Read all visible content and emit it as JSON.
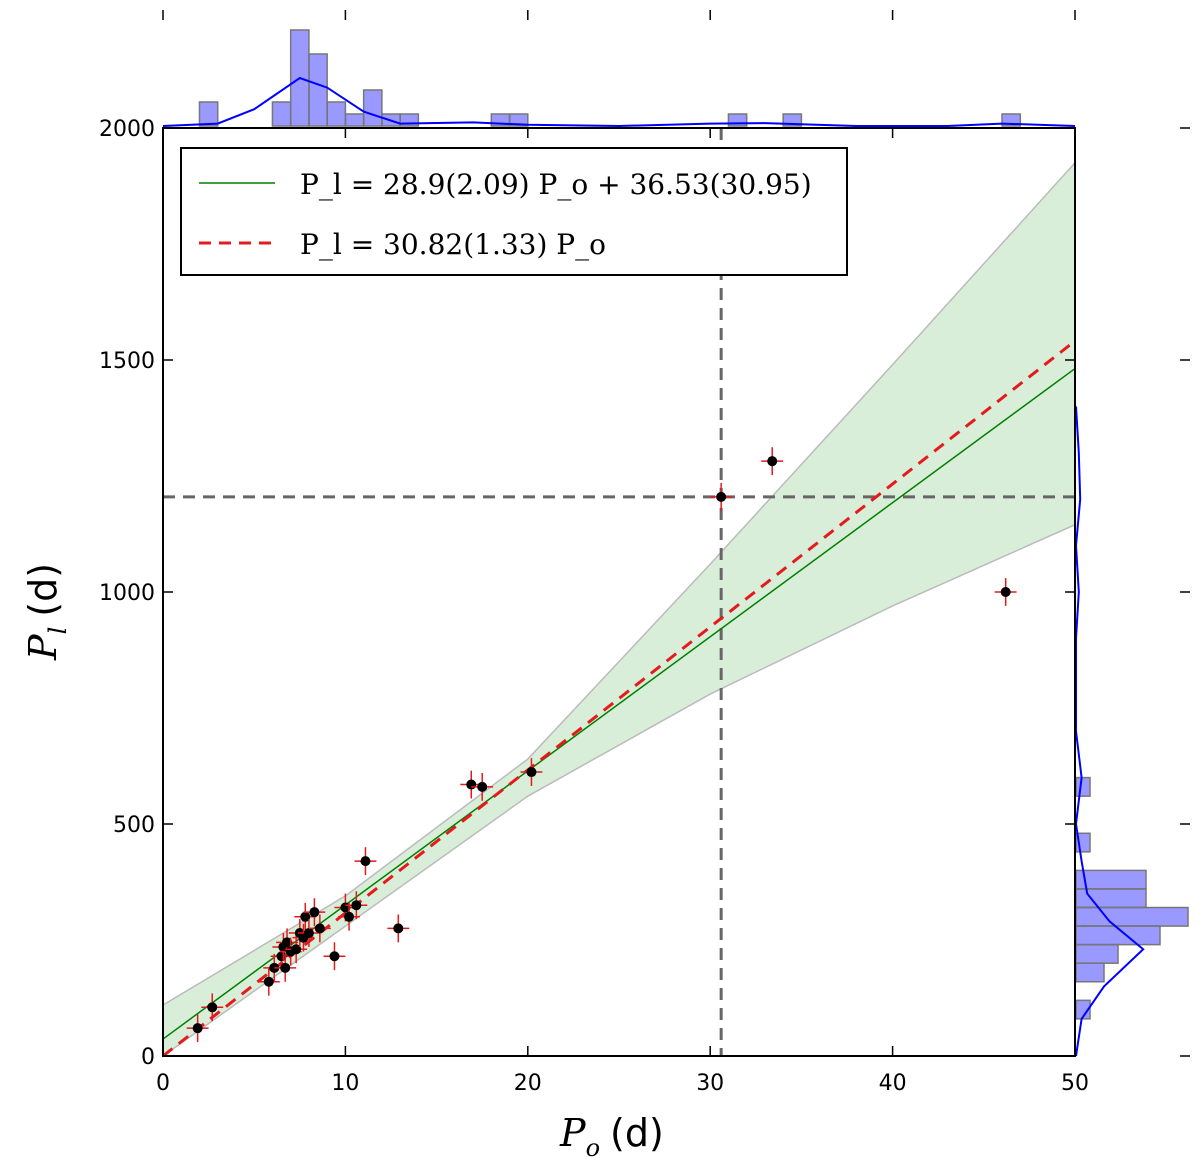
{
  "chart_data": {
    "type": "scatter",
    "title": "",
    "xlabel": {
      "symbol": "P",
      "subscript": "o",
      "unit": "(d)"
    },
    "ylabel": {
      "symbol": "P",
      "subscript": "l",
      "unit": "(d)"
    },
    "xlim": [
      0,
      50
    ],
    "ylim": [
      0,
      2000
    ],
    "x_ticks": [
      "0",
      "10",
      "20",
      "30",
      "40",
      "50"
    ],
    "y_ticks": [
      "0",
      "500",
      "1000",
      "1500",
      "2000"
    ],
    "x_tick_values": [
      0,
      10,
      20,
      30,
      40,
      50
    ],
    "y_tick_values": [
      0,
      500,
      1000,
      1500,
      2000
    ],
    "grid": false,
    "legend_position": "top-left",
    "points": [
      {
        "x": 1.9,
        "y": 60,
        "xerr": 0.6,
        "yerr": 30
      },
      {
        "x": 2.7,
        "y": 105,
        "xerr": 0.6,
        "yerr": 30
      },
      {
        "x": 5.8,
        "y": 160,
        "xerr": 0.6,
        "yerr": 30
      },
      {
        "x": 6.1,
        "y": 190,
        "xerr": 0.6,
        "yerr": 30
      },
      {
        "x": 6.5,
        "y": 215,
        "xerr": 0.6,
        "yerr": 30
      },
      {
        "x": 6.6,
        "y": 235,
        "xerr": 0.6,
        "yerr": 30
      },
      {
        "x": 6.7,
        "y": 190,
        "xerr": 0.6,
        "yerr": 30
      },
      {
        "x": 6.8,
        "y": 245,
        "xerr": 0.6,
        "yerr": 30
      },
      {
        "x": 7.0,
        "y": 225,
        "xerr": 0.6,
        "yerr": 30
      },
      {
        "x": 7.3,
        "y": 230,
        "xerr": 0.6,
        "yerr": 30
      },
      {
        "x": 7.5,
        "y": 265,
        "xerr": 0.6,
        "yerr": 30
      },
      {
        "x": 7.7,
        "y": 255,
        "xerr": 0.6,
        "yerr": 30
      },
      {
        "x": 7.8,
        "y": 300,
        "xerr": 0.6,
        "yerr": 30
      },
      {
        "x": 8.0,
        "y": 265,
        "xerr": 0.6,
        "yerr": 30
      },
      {
        "x": 8.3,
        "y": 310,
        "xerr": 0.6,
        "yerr": 30
      },
      {
        "x": 8.6,
        "y": 275,
        "xerr": 0.6,
        "yerr": 30
      },
      {
        "x": 9.4,
        "y": 215,
        "xerr": 0.6,
        "yerr": 30
      },
      {
        "x": 10.0,
        "y": 320,
        "xerr": 0.6,
        "yerr": 30
      },
      {
        "x": 10.2,
        "y": 300,
        "xerr": 0.6,
        "yerr": 30
      },
      {
        "x": 10.6,
        "y": 325,
        "xerr": 0.6,
        "yerr": 30
      },
      {
        "x": 11.1,
        "y": 420,
        "xerr": 0.6,
        "yerr": 30
      },
      {
        "x": 12.9,
        "y": 275,
        "xerr": 0.6,
        "yerr": 30
      },
      {
        "x": 16.9,
        "y": 585,
        "xerr": 0.6,
        "yerr": 30
      },
      {
        "x": 17.5,
        "y": 580,
        "xerr": 0.6,
        "yerr": 30
      },
      {
        "x": 20.2,
        "y": 612,
        "xerr": 0.6,
        "yerr": 30
      },
      {
        "x": 30.6,
        "y": 1205,
        "xerr": 0.6,
        "yerr": 30
      },
      {
        "x": 33.4,
        "y": 1282,
        "xerr": 0.6,
        "yerr": 30
      },
      {
        "x": 46.2,
        "y": 1000,
        "xerr": 0.6,
        "yerr": 30
      }
    ],
    "fit_line": {
      "label": "P_l = 28.9(2.09) P_o + 36.53(30.95)",
      "slope": 28.9,
      "intercept": 36.53,
      "color": "#008000"
    },
    "fit_line_origin": {
      "label": "P_l = 30.82(1.33) P_o",
      "slope": 30.82,
      "intercept": 0,
      "color": "#e41a1c"
    },
    "confidence_band": {
      "color": "#2ca02c",
      "upper": [
        {
          "x": 0,
          "y": 110
        },
        {
          "x": 10,
          "y": 345
        },
        {
          "x": 20,
          "y": 640
        },
        {
          "x": 30,
          "y": 1060
        },
        {
          "x": 40,
          "y": 1490
        },
        {
          "x": 50,
          "y": 1925
        }
      ],
      "lower": [
        {
          "x": 0,
          "y": -20
        },
        {
          "x": 10,
          "y": 280
        },
        {
          "x": 20,
          "y": 560
        },
        {
          "x": 30,
          "y": 780
        },
        {
          "x": 40,
          "y": 970
        },
        {
          "x": 50,
          "y": 1145
        }
      ]
    },
    "reference_lines": {
      "x": 30.6,
      "y": 1205,
      "color": "#666666"
    },
    "top_histogram": {
      "bin_edges_start": 0,
      "bin_width": 1.0,
      "counts": [
        0,
        0,
        1,
        0,
        0,
        0,
        1,
        4,
        3,
        1,
        0.5,
        1.5,
        0.5,
        0.5,
        0,
        0,
        0,
        0,
        0.5,
        0.5,
        0,
        0,
        0,
        0,
        0,
        0,
        0,
        0,
        0,
        0,
        0,
        0.5,
        0,
        0,
        0.5,
        0,
        0,
        0,
        0,
        0,
        0,
        0,
        0,
        0,
        0,
        0,
        0.5,
        0,
        0,
        0
      ],
      "kde": [
        {
          "x": 0,
          "y": 0.0
        },
        {
          "x": 3,
          "y": 0.1
        },
        {
          "x": 5,
          "y": 0.7
        },
        {
          "x": 7.5,
          "y": 2.0
        },
        {
          "x": 9,
          "y": 1.6
        },
        {
          "x": 11,
          "y": 0.6
        },
        {
          "x": 13,
          "y": 0.1
        },
        {
          "x": 17,
          "y": 0.15
        },
        {
          "x": 20,
          "y": 0.05
        },
        {
          "x": 25,
          "y": 0.0
        },
        {
          "x": 30,
          "y": 0.1
        },
        {
          "x": 33,
          "y": 0.12
        },
        {
          "x": 38,
          "y": 0.0
        },
        {
          "x": 43,
          "y": 0.0
        },
        {
          "x": 46,
          "y": 0.1
        },
        {
          "x": 50,
          "y": 0.0
        }
      ]
    },
    "right_histogram": {
      "bin_edges_start": 0,
      "bin_width": 40,
      "counts": [
        0,
        0,
        0.5,
        0,
        1,
        1.5,
        3,
        4,
        2.5,
        2.5,
        0,
        0.5,
        0,
        0,
        0.5,
        0,
        0,
        0,
        0,
        0,
        0,
        0,
        0,
        0,
        0,
        0,
        0,
        0,
        0,
        0,
        0,
        0,
        0,
        0,
        0,
        0,
        0,
        0,
        0,
        0,
        0,
        0,
        0,
        0,
        0,
        0,
        0,
        0,
        0,
        0
      ],
      "kde": [
        {
          "y": 0,
          "x": 0.0
        },
        {
          "y": 80,
          "x": 0.2
        },
        {
          "y": 150,
          "x": 1.0
        },
        {
          "y": 230,
          "x": 2.4
        },
        {
          "y": 290,
          "x": 1.2
        },
        {
          "y": 350,
          "x": 0.4
        },
        {
          "y": 420,
          "x": 0.2
        },
        {
          "y": 500,
          "x": 0.0
        },
        {
          "y": 600,
          "x": 0.2
        },
        {
          "y": 700,
          "x": 0.0
        },
        {
          "y": 900,
          "x": 0.0
        },
        {
          "y": 1000,
          "x": 0.1
        },
        {
          "y": 1100,
          "x": 0.0
        },
        {
          "y": 1200,
          "x": 0.15
        },
        {
          "y": 1300,
          "x": 0.1
        },
        {
          "y": 1400,
          "x": 0.0
        }
      ]
    }
  }
}
